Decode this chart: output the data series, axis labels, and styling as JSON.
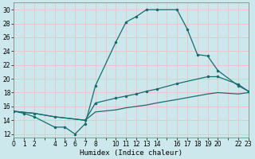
{
  "xlabel": "Humidex (Indice chaleur)",
  "background_color": "#cce8ec",
  "grid_color": "#e8c8c8",
  "line_color": "#1a6b6e",
  "xlim": [
    0,
    23
  ],
  "ylim": [
    11.5,
    31
  ],
  "xtick_positions": [
    0,
    1,
    2,
    3,
    4,
    5,
    6,
    7,
    8,
    9,
    10,
    11,
    12,
    13,
    14,
    15,
    16,
    17,
    18,
    19,
    20,
    21,
    22,
    23
  ],
  "xtick_labels": [
    "0",
    "1",
    "2",
    "",
    "4",
    "5",
    "6",
    "7",
    "8",
    "",
    "10",
    "11",
    "12",
    "13",
    "14",
    "",
    "16",
    "17",
    "18",
    "19",
    "20",
    "",
    "22",
    "23"
  ],
  "ytick_positions": [
    12,
    14,
    16,
    18,
    20,
    22,
    24,
    26,
    28,
    30
  ],
  "ytick_labels": [
    "12",
    "14",
    "16",
    "18",
    "20",
    "22",
    "24",
    "26",
    "28",
    "30"
  ],
  "line1_x": [
    0,
    1,
    2,
    4,
    5,
    6,
    7,
    8,
    10,
    11,
    12,
    13,
    14,
    16,
    17,
    18,
    19,
    20,
    22,
    23
  ],
  "line1_y": [
    15.3,
    15.0,
    14.5,
    13.0,
    13.0,
    12.0,
    13.5,
    19.0,
    25.3,
    28.2,
    29.0,
    30.0,
    30.0,
    30.0,
    27.2,
    23.5,
    23.3,
    21.2,
    19.0,
    18.2
  ],
  "line2_x": [
    0,
    2,
    4,
    7,
    8,
    10,
    11,
    12,
    13,
    14,
    16,
    19,
    20,
    22,
    23
  ],
  "line2_y": [
    15.3,
    15.0,
    14.5,
    14.0,
    16.5,
    17.2,
    17.5,
    17.8,
    18.2,
    18.5,
    19.3,
    20.3,
    20.3,
    19.2,
    18.2
  ],
  "line3_x": [
    0,
    2,
    4,
    7,
    8,
    10,
    11,
    12,
    13,
    14,
    16,
    19,
    20,
    22,
    23
  ],
  "line3_y": [
    15.3,
    15.0,
    14.5,
    14.0,
    15.2,
    15.5,
    15.8,
    16.0,
    16.2,
    16.5,
    17.0,
    17.8,
    18.0,
    17.8,
    18.0
  ]
}
